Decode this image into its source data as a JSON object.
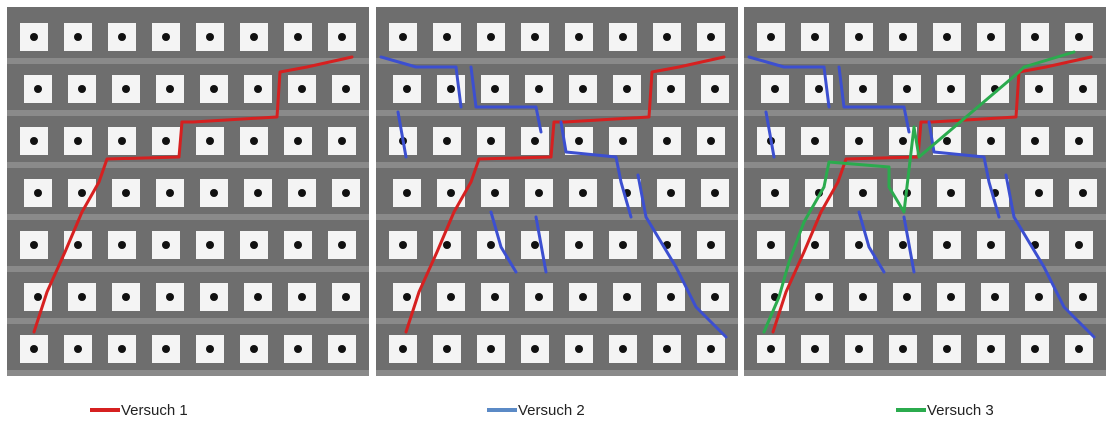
{
  "legend": [
    {
      "label": "Versuch 1",
      "color": "#d62020"
    },
    {
      "label": "Versuch 2",
      "color": "#5b8ac6"
    },
    {
      "label": "Versuch 3",
      "color": "#2bab4e"
    }
  ]
}
